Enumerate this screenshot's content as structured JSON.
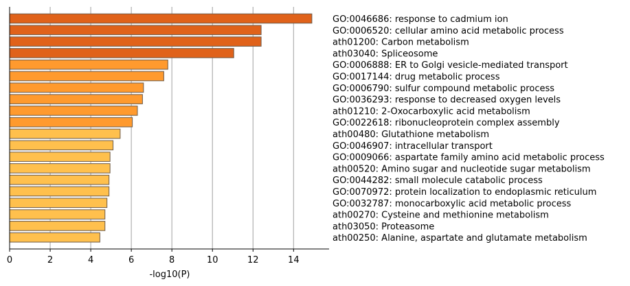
{
  "chart_data": {
    "type": "bar",
    "orientation": "horizontal",
    "title": "",
    "xlabel": "-log10(P)",
    "ylabel": "",
    "xlim": [
      0,
      15.75
    ],
    "xticks": [
      0,
      2,
      4,
      6,
      8,
      10,
      12,
      14
    ],
    "grid": "vertical lines at ticks",
    "labels_position": "right of plot",
    "bar_edge_color": "#6b5a4a",
    "color_levels": {
      "dark": "#E0621A",
      "medium": "#FF9A2E",
      "light": "#FFC04D"
    },
    "bars": [
      {
        "label": "GO:0046686: response to cadmium ion",
        "value": 14.9,
        "color": "#E0621A"
      },
      {
        "label": "GO:0006520: cellular amino acid metabolic process",
        "value": 12.4,
        "color": "#E0621A"
      },
      {
        "label": "ath01200: Carbon metabolism",
        "value": 12.4,
        "color": "#E0621A"
      },
      {
        "label": "ath03040: Spliceosome",
        "value": 11.05,
        "color": "#E0621A"
      },
      {
        "label": "GO:0006888: ER to Golgi vesicle-mediated transport",
        "value": 7.8,
        "color": "#FF9A2E"
      },
      {
        "label": "GO:0017144: drug metabolic process",
        "value": 7.6,
        "color": "#FF9A2E"
      },
      {
        "label": "GO:0006790: sulfur compound metabolic process",
        "value": 6.6,
        "color": "#FF9A2E"
      },
      {
        "label": "GO:0036293: response to decreased oxygen levels",
        "value": 6.55,
        "color": "#FF9A2E"
      },
      {
        "label": "ath01210: 2-Oxocarboxylic acid metabolism",
        "value": 6.3,
        "color": "#FF9A2E"
      },
      {
        "label": "GO:0022618: ribonucleoprotein complex assembly",
        "value": 6.05,
        "color": "#FF9A2E"
      },
      {
        "label": "ath00480: Glutathione metabolism",
        "value": 5.45,
        "color": "#FFC04D"
      },
      {
        "label": "GO:0046907: intracellular transport",
        "value": 5.1,
        "color": "#FFC04D"
      },
      {
        "label": "GO:0009066: aspartate family amino acid metabolic process",
        "value": 4.95,
        "color": "#FFC04D"
      },
      {
        "label": "ath00520: Amino sugar and nucleotide sugar metabolism",
        "value": 4.95,
        "color": "#FFC04D"
      },
      {
        "label": "GO:0044282: small molecule catabolic process",
        "value": 4.9,
        "color": "#FFC04D"
      },
      {
        "label": "GO:0070972: protein localization to endoplasmic reticulum",
        "value": 4.9,
        "color": "#FFC04D"
      },
      {
        "label": "GO:0032787: monocarboxylic acid metabolic process",
        "value": 4.8,
        "color": "#FFC04D"
      },
      {
        "label": "ath00270: Cysteine and methionine metabolism",
        "value": 4.7,
        "color": "#FFC04D"
      },
      {
        "label": "ath03050: Proteasome",
        "value": 4.7,
        "color": "#FFC04D"
      },
      {
        "label": "ath00250: Alanine, aspartate and glutamate metabolism",
        "value": 4.45,
        "color": "#FFC04D"
      }
    ]
  }
}
